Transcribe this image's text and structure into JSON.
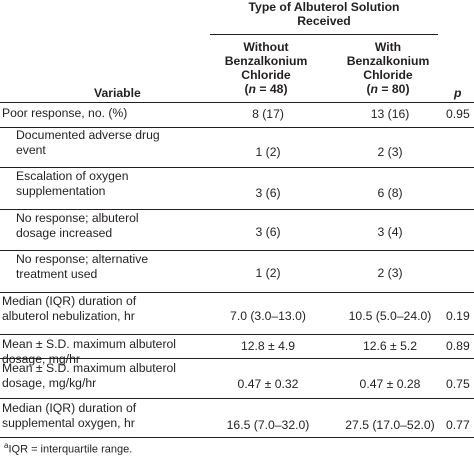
{
  "header": {
    "group_title_line1": "Type of Albuterol Solution",
    "group_title_line2": "Received",
    "col_variable": "Variable",
    "col_without": {
      "line1": "Without",
      "line2": "Benzalkonium",
      "line3": "Chloride",
      "n_open": "(",
      "n_label": "n",
      "n_value": " = 48)"
    },
    "col_with": {
      "line1": "With",
      "line2": "Benzalkonium",
      "line3": "Chloride",
      "n_open": "(",
      "n_label": "n",
      "n_value": " = 80)"
    },
    "col_p": "p"
  },
  "rows": [
    {
      "label1": "Poor response, no. (%)",
      "label2": "",
      "without": "8 (17)",
      "with": "13 (16)",
      "p": "0.95"
    },
    {
      "label1": "Documented adverse drug",
      "label2": "event",
      "without": "1 (2)",
      "with": "2 (3)",
      "p": ""
    },
    {
      "label1": "Escalation of oxygen",
      "label2": "supplementation",
      "without": "3 (6)",
      "with": "6 (8)",
      "p": ""
    },
    {
      "label1": "No response; albuterol",
      "label2": "dosage increased",
      "without": "3 (6)",
      "with": "3 (4)",
      "p": ""
    },
    {
      "label1": "No response; alternative",
      "label2": "treatment used",
      "without": "1 (2)",
      "with": "2 (3)",
      "p": ""
    },
    {
      "label1": "Median (IQR) duration of",
      "label2": "albuterol nebulization, hr",
      "without": "7.0 (3.0–13.0)",
      "with": "10.5 (5.0–24.0)",
      "p": "0.19"
    },
    {
      "label1": "Mean ± S.D. maximum albuterol",
      "label2": "dosage, mg/hr",
      "without": "12.8 ± 4.9",
      "with": "12.6 ± 5.2",
      "p": "0.89"
    },
    {
      "label1": "Mean ± S.D. maximum albuterol",
      "label2": "dosage, mg/kg/hr",
      "without": "0.47 ± 0.32",
      "with": "0.47 ± 0.28",
      "p": "0.75"
    },
    {
      "label1": "Median (IQR) duration of",
      "label2": "supplemental oxygen, hr",
      "without": "16.5 (7.0–32.0)",
      "with": "27.5 (17.0–52.0)",
      "p": "0.77"
    }
  ],
  "footnote": {
    "superscript": "a",
    "text": "IQR = interquartile range."
  }
}
